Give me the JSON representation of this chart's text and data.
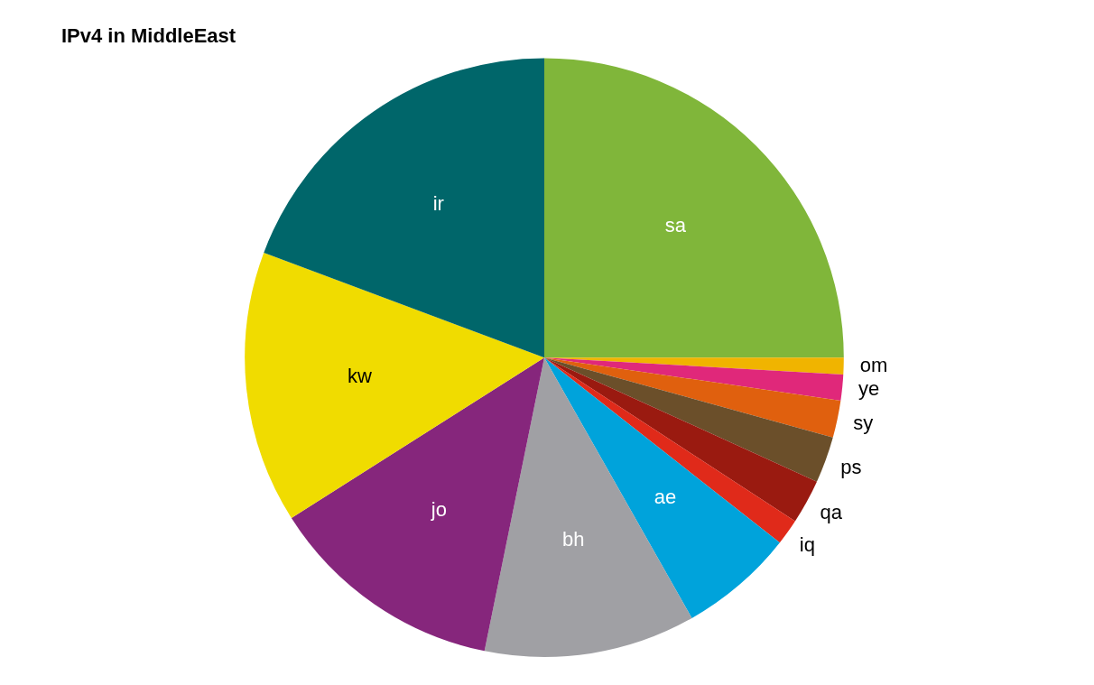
{
  "chart_data": {
    "type": "pie",
    "title": "IPv4 in MiddleEast",
    "categories": [
      "sa",
      "om",
      "ye",
      "sy",
      "ps",
      "qa",
      "iq",
      "ae",
      "bh",
      "jo",
      "kw",
      "ir"
    ],
    "values": [
      25,
      0.9,
      1.4,
      2.0,
      2.5,
      2.4,
      1.4,
      6.2,
      11.4,
      12.8,
      14.7,
      19.3
    ],
    "colors": [
      "#80b63a",
      "#f0b400",
      "#e0287a",
      "#e0600e",
      "#6b4f2a",
      "#9a1a10",
      "#e02a1a",
      "#00a3db",
      "#a0a0a4",
      "#86267c",
      "#f0dc00",
      "#00666a"
    ],
    "legend": false
  }
}
